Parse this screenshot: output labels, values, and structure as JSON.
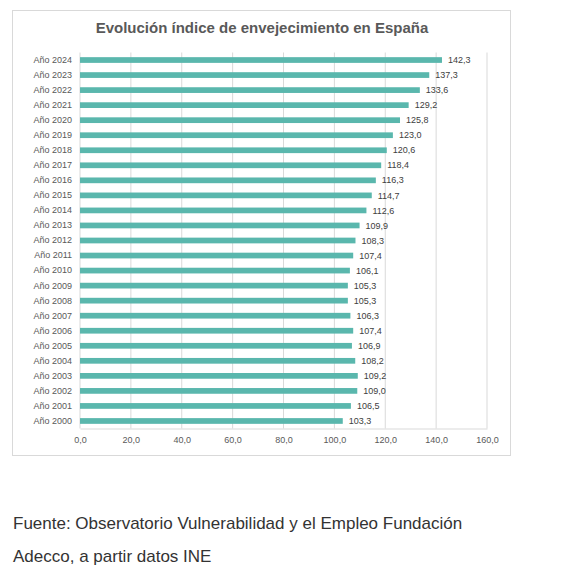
{
  "chart_data": {
    "type": "bar",
    "orientation": "horizontal",
    "title": "Evolución índice de envejecimiento en España",
    "categories": [
      "Año 2024",
      "Año 2023",
      "Año 2022",
      "Año 2021",
      "Año 2020",
      "Año 2019",
      "Año 2018",
      "Año 2017",
      "Año 2016",
      "Año 2015",
      "Año 2014",
      "Año 2013",
      "Año 2012",
      "Año 2011",
      "Año 2010",
      "Año 2009",
      "Año 2008",
      "Año 2007",
      "Año 2006",
      "Año 2005",
      "Año 2004",
      "Año 2003",
      "Año 2002",
      "Año 2001",
      "Año 2000"
    ],
    "values": [
      142.3,
      137.3,
      133.6,
      129.2,
      125.8,
      123.0,
      120.6,
      118.4,
      116.3,
      114.7,
      112.6,
      109.9,
      108.3,
      107.4,
      106.1,
      105.3,
      105.3,
      106.3,
      107.4,
      106.9,
      108.2,
      109.2,
      109.0,
      106.5,
      103.3
    ],
    "value_labels": [
      "142,3",
      "137,3",
      "133,6",
      "129,2",
      "125,8",
      "123,0",
      "120,6",
      "118,4",
      "116,3",
      "114,7",
      "112,6",
      "109,9",
      "108,3",
      "107,4",
      "106,1",
      "105,3",
      "105,3",
      "106,3",
      "107,4",
      "106,9",
      "108,2",
      "109,2",
      "109,0",
      "106,5",
      "103,3"
    ],
    "data_labels": true,
    "color": "#5ab7ad",
    "xlim": [
      0,
      160
    ],
    "xticks": [
      {
        "value": 0,
        "label": "0,0"
      },
      {
        "value": 20,
        "label": "20,0"
      },
      {
        "value": 40,
        "label": "40,0"
      },
      {
        "value": 60,
        "label": "60,0"
      },
      {
        "value": 80,
        "label": "80,0"
      },
      {
        "value": 100,
        "label": "100,0"
      },
      {
        "value": 120,
        "label": "120,0"
      },
      {
        "value": 140,
        "label": "140,0"
      },
      {
        "value": 160,
        "label": "160,0"
      }
    ],
    "grid": true,
    "source": [
      "Fuente: Observatorio Vulnerabilidad y el Empleo Fundación",
      "Adecco, a partir datos INE"
    ]
  }
}
